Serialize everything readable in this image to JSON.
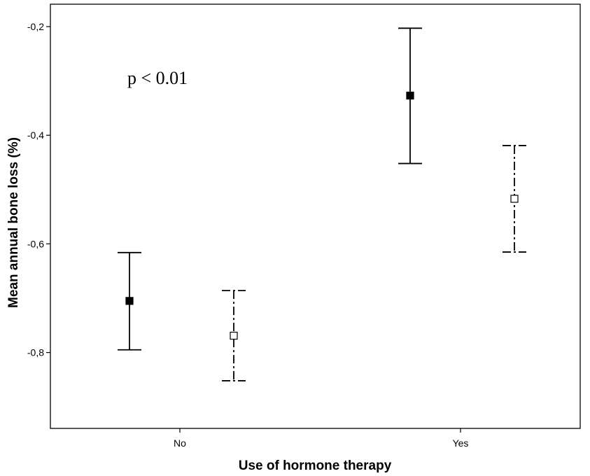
{
  "chart_data": {
    "type": "errorbar",
    "xlabel": "Use of hormone therapy",
    "ylabel": "Mean annual bone loss (%)",
    "categories": [
      "No",
      "Yes"
    ],
    "ylim": [
      -0.93,
      -0.16
    ],
    "yticks": [
      -0.2,
      -0.4,
      -0.6,
      -0.8
    ],
    "ytick_labels": [
      "-0,2",
      "-0,4",
      "-0,6",
      "-0,8"
    ],
    "annotation": "p < 0.01",
    "grid": false,
    "series": [
      {
        "marker": "filled-square",
        "line_style": "solid",
        "points": [
          {
            "category": "No",
            "mean": -0.705,
            "lower": -0.795,
            "upper": -0.616
          },
          {
            "category": "Yes",
            "mean": -0.327,
            "lower": -0.452,
            "upper": -0.203
          }
        ]
      },
      {
        "marker": "open-square",
        "line_style": "dashed",
        "points": [
          {
            "category": "No",
            "mean": -0.769,
            "lower": -0.852,
            "upper": -0.686
          },
          {
            "category": "Yes",
            "mean": -0.517,
            "lower": -0.615,
            "upper": -0.419
          }
        ]
      }
    ],
    "colors": {
      "line": "#000000",
      "background": "#ffffff"
    }
  }
}
